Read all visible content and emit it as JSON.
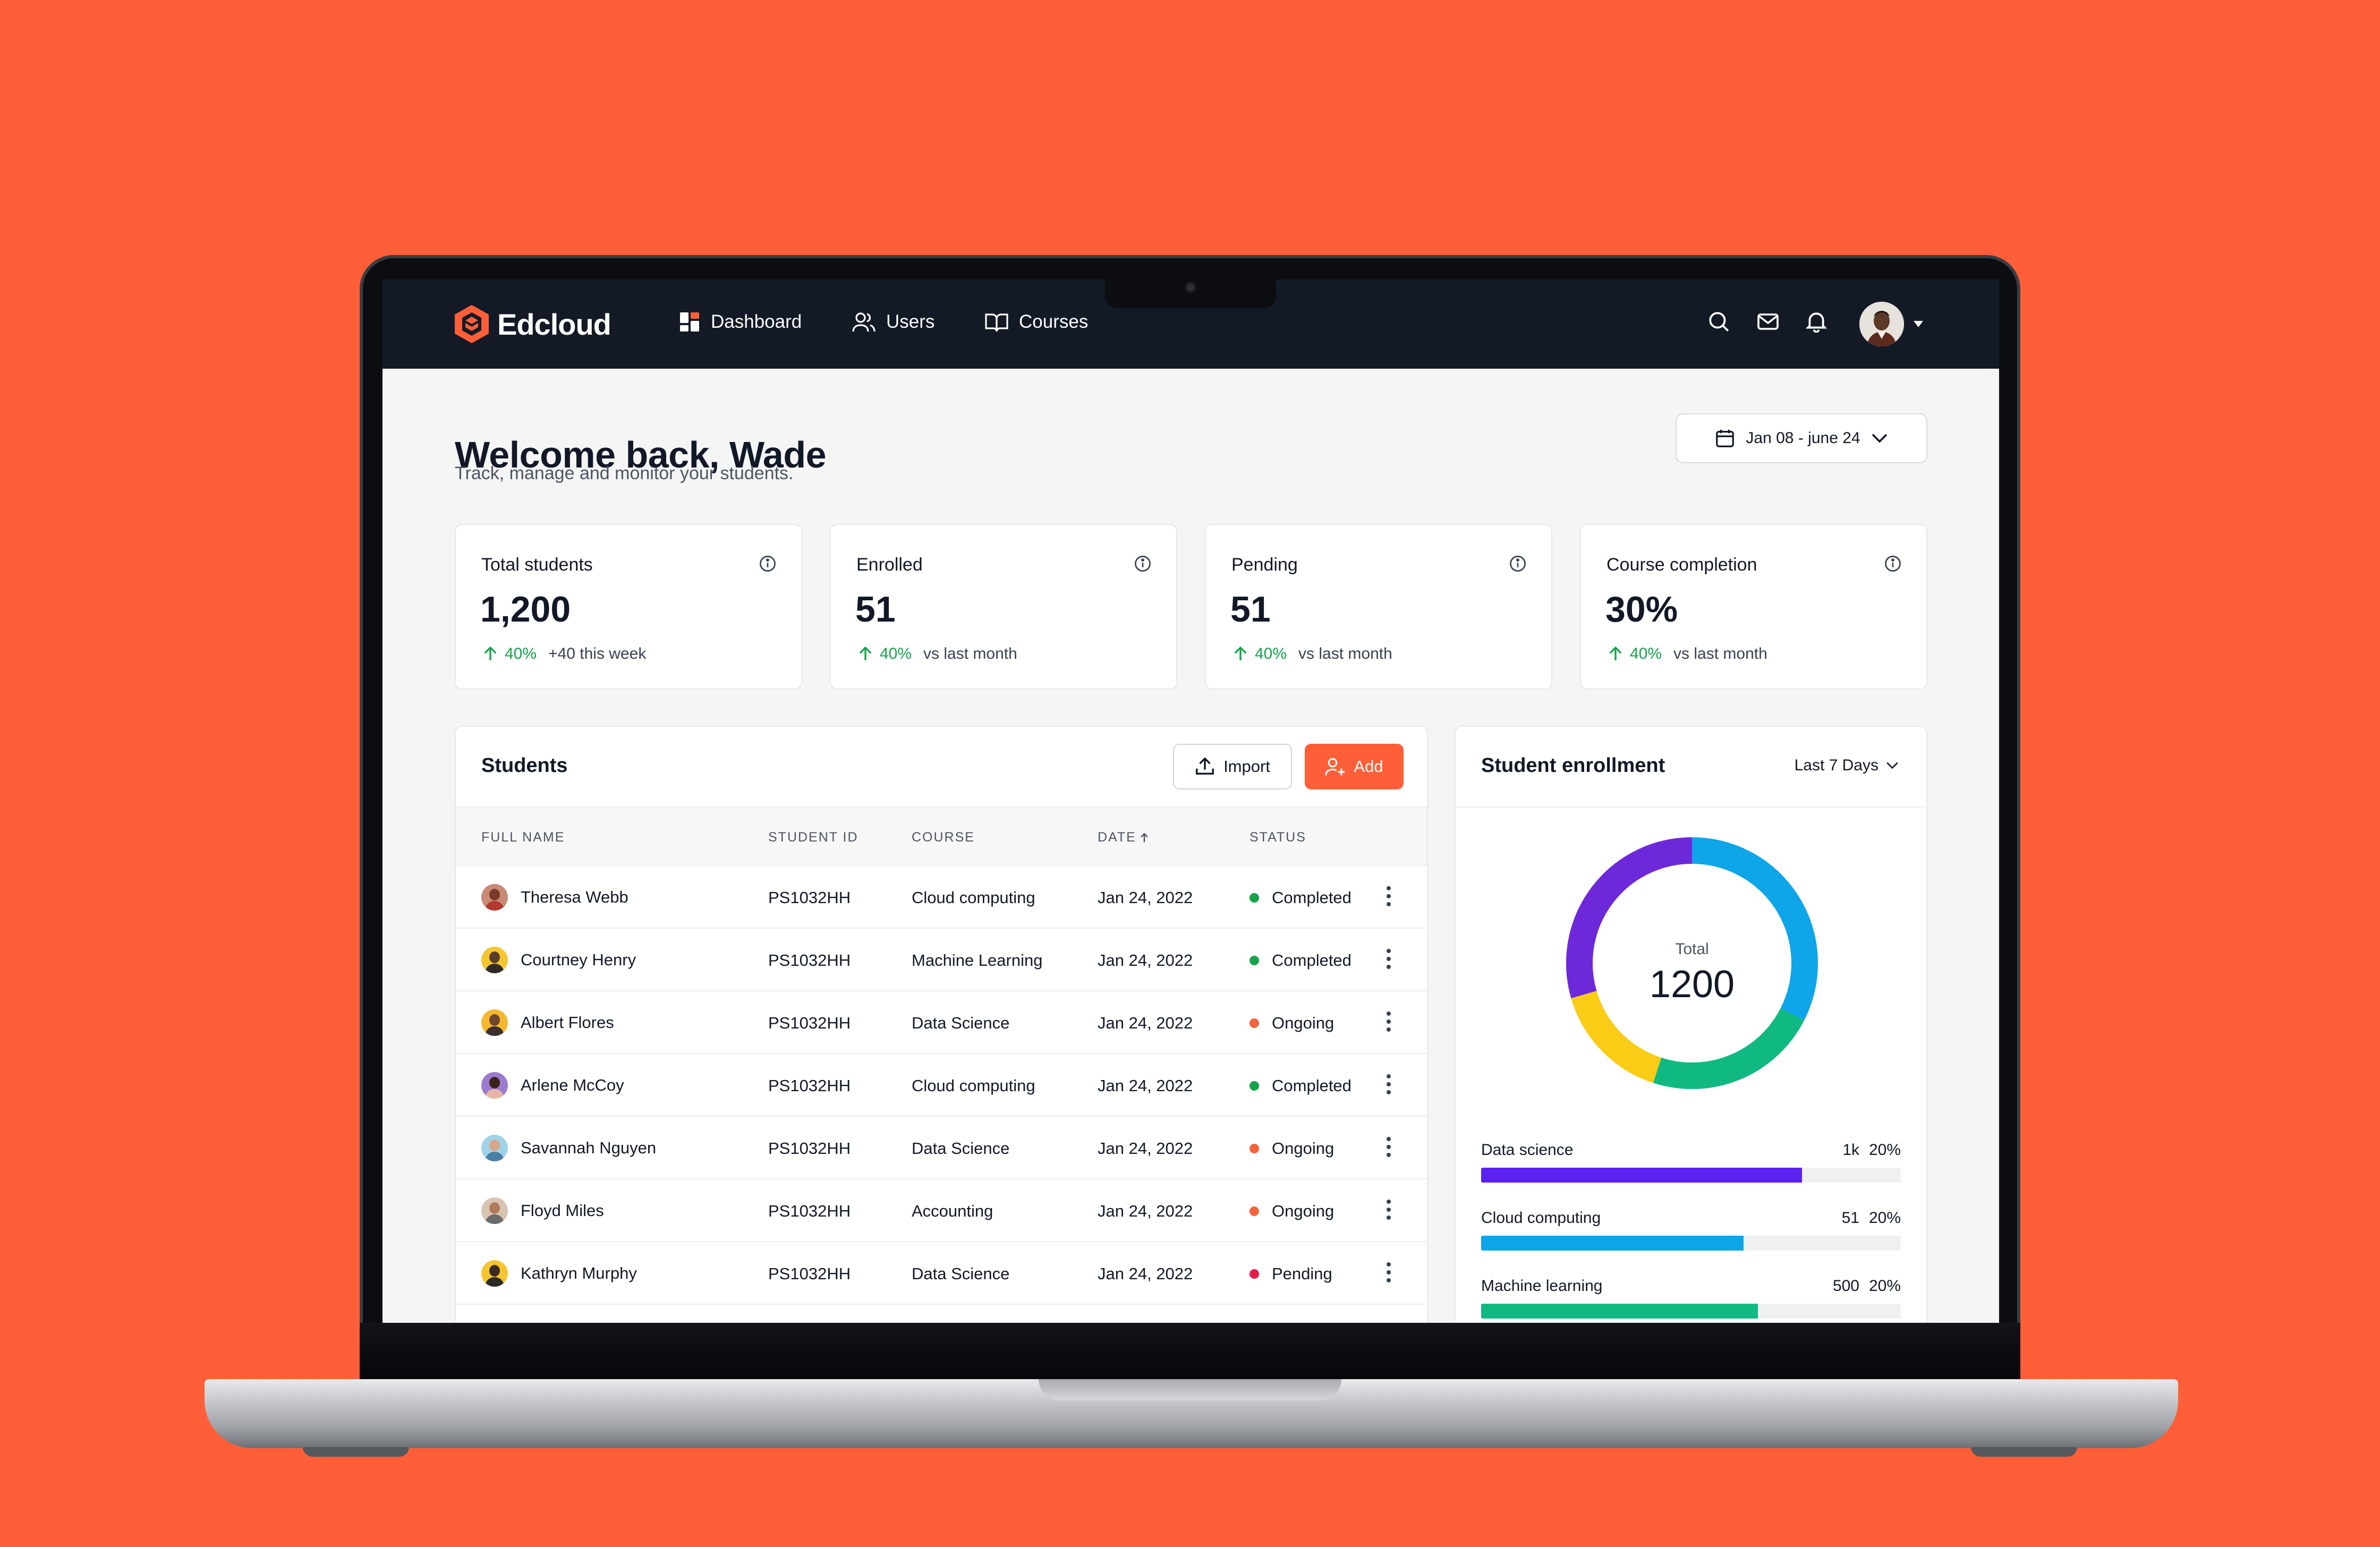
{
  "app": {
    "name": "Edcloud"
  },
  "nav": {
    "items": [
      {
        "label": "Dashboard",
        "icon": "dashboard-icon"
      },
      {
        "label": "Users",
        "icon": "users-icon"
      },
      {
        "label": "Courses",
        "icon": "book-icon"
      }
    ]
  },
  "header": {
    "title": "Welcome back, Wade",
    "subtitle": "Track, manage and monitor your students.",
    "date_range": "Jan 08 - june 24"
  },
  "stats": [
    {
      "title": "Total students",
      "value": "1,200",
      "pct": "40%",
      "note": "+40 this week"
    },
    {
      "title": "Enrolled",
      "value": "51",
      "pct": "40%",
      "note": "vs last month"
    },
    {
      "title": "Pending",
      "value": "51",
      "pct": "40%",
      "note": "vs last month"
    },
    {
      "title": "Course completion",
      "value": "30%",
      "pct": "40%",
      "note": "vs last month"
    }
  ],
  "students": {
    "title": "Students",
    "import_label": "Import",
    "add_label": "Add",
    "columns": [
      "Full name",
      "Student ID",
      "Course",
      "Date",
      "Status"
    ],
    "rows": [
      {
        "name": "Theresa Webb",
        "id": "PS1032HH",
        "course": "Cloud computing",
        "date": "Jan 24, 2022",
        "status": "Completed"
      },
      {
        "name": "Courtney Henry",
        "id": "PS1032HH",
        "course": "Machine Learning",
        "date": "Jan 24, 2022",
        "status": "Completed"
      },
      {
        "name": "Albert Flores",
        "id": "PS1032HH",
        "course": "Data Science",
        "date": "Jan 24, 2022",
        "status": "Ongoing"
      },
      {
        "name": "Arlene McCoy",
        "id": "PS1032HH",
        "course": "Cloud computing",
        "date": "Jan 24, 2022",
        "status": "Completed"
      },
      {
        "name": "Savannah Nguyen",
        "id": "PS1032HH",
        "course": "Data Science",
        "date": "Jan 24, 2022",
        "status": "Ongoing"
      },
      {
        "name": "Floyd Miles",
        "id": "PS1032HH",
        "course": "Accounting",
        "date": "Jan 24, 2022",
        "status": "Ongoing"
      },
      {
        "name": "Kathryn Murphy",
        "id": "PS1032HH",
        "course": "Data Science",
        "date": "Jan 24, 2022",
        "status": "Pending"
      }
    ]
  },
  "status_colors": {
    "Completed": "#16a34a",
    "Ongoing": "#f2643c",
    "Pending": "#e11d48"
  },
  "enrollment": {
    "title": "Student enrollment",
    "period": "Last 7 Days",
    "total_label": "Total",
    "total": "1200",
    "donut_segments": [
      {
        "color": "#0ea5e9",
        "fraction": 0.325
      },
      {
        "color": "#10b981",
        "fraction": 0.225
      },
      {
        "color": "#facc15",
        "fraction": 0.155
      },
      {
        "color": "#6d28d9",
        "fraction": 0.295
      }
    ],
    "bars": [
      {
        "label": "Data science",
        "count": "1k",
        "pct": "20%",
        "fill": 0.765,
        "color": "#5b21f0"
      },
      {
        "label": "Cloud computing",
        "count": "51",
        "pct": "20%",
        "fill": 0.625,
        "color": "#0ea5e9"
      },
      {
        "label": "Machine learning",
        "count": "500",
        "pct": "20%",
        "fill": 0.66,
        "color": "#10b981"
      }
    ]
  },
  "colors": {
    "brand": "#ff5f38",
    "topbar": "#131a26"
  }
}
